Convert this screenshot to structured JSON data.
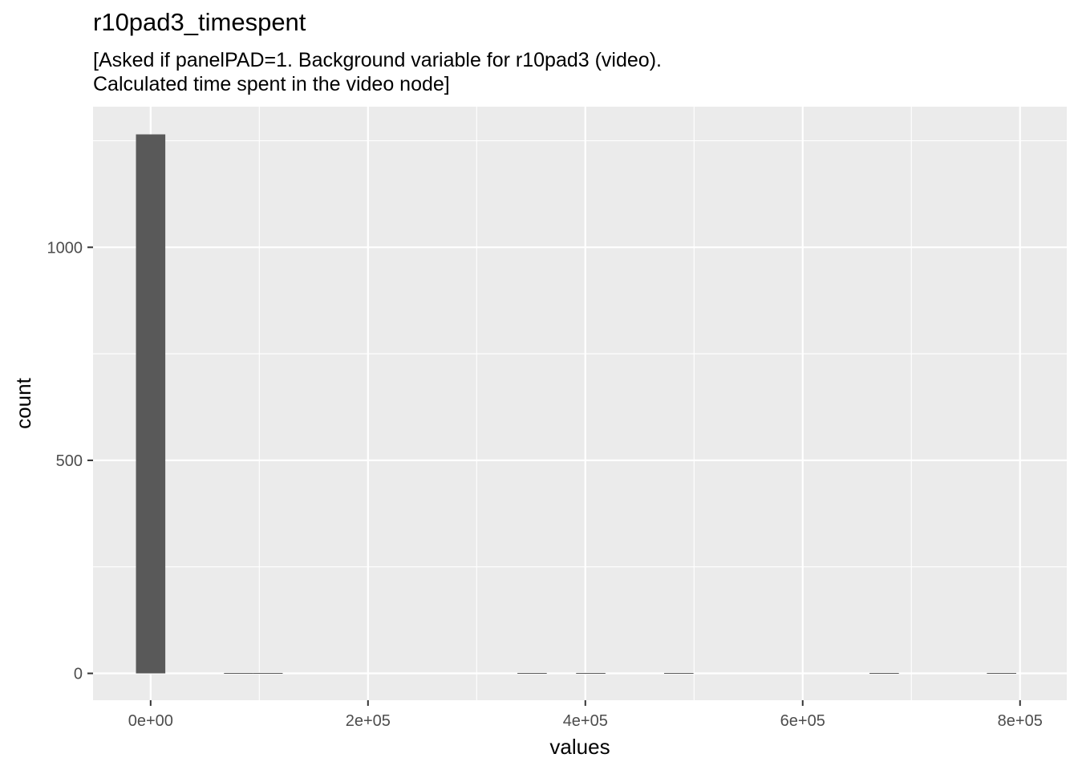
{
  "chart_data": {
    "type": "bar",
    "title": "r10pad3_timespent",
    "subtitle_lines": [
      "[Asked if panelPAD=1. Background variable for r10pad3 (video).",
      "Calculated time spent in the video node]"
    ],
    "xlabel": "values",
    "ylabel": "count",
    "x_ticks": [
      {
        "value": 0,
        "label": "0e+00"
      },
      {
        "value": 200000,
        "label": "2e+05"
      },
      {
        "value": 400000,
        "label": "4e+05"
      },
      {
        "value": 600000,
        "label": "6e+05"
      },
      {
        "value": 800000,
        "label": "8e+05"
      }
    ],
    "y_ticks": [
      {
        "value": 0,
        "label": "0"
      },
      {
        "value": 500,
        "label": "500"
      },
      {
        "value": 1000,
        "label": "1000"
      }
    ],
    "xlim": [
      -53000,
      843000
    ],
    "ylim": [
      -63,
      1330
    ],
    "bins": [
      {
        "x0": -13500,
        "x1": 13500,
        "count": 1265
      },
      {
        "x0": 67500,
        "x1": 94500,
        "count": 1
      },
      {
        "x0": 94500,
        "x1": 121500,
        "count": 1
      },
      {
        "x0": 337500,
        "x1": 364500,
        "count": 1
      },
      {
        "x0": 391500,
        "x1": 418500,
        "count": 1
      },
      {
        "x0": 472500,
        "x1": 499500,
        "count": 1
      },
      {
        "x0": 661500,
        "x1": 688500,
        "count": 1
      },
      {
        "x0": 769500,
        "x1": 796500,
        "count": 1
      }
    ],
    "colors": {
      "panel_background": "#ebebeb",
      "grid_major": "#ffffff",
      "bar_fill": "#595959",
      "tick_text": "#4d4d4d"
    }
  }
}
